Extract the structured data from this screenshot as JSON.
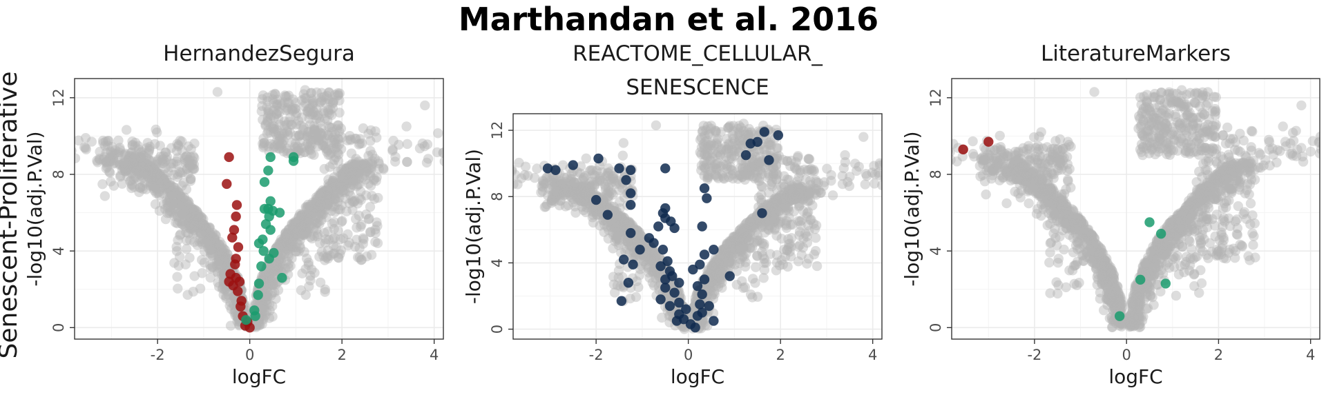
{
  "title": "Marthandan et al. 2016",
  "row_label": "Senescent-Proliferative",
  "colors": {
    "background_points": "#b3b3b3",
    "up": "#1a9b6d",
    "down": "#9b1111",
    "set": "#0f2a4f"
  },
  "chart_data": [
    {
      "type": "scatter",
      "title_lines": [
        "HernandezSegura"
      ],
      "xlabel": "logFC",
      "ylabel": "-log10(adj.P.Val)",
      "xlim": [
        -3.8,
        4.2
      ],
      "ylim": [
        -0.6,
        13.0
      ],
      "xticks": [
        -2,
        0,
        2,
        4
      ],
      "yticks": [
        0,
        4,
        8,
        12
      ],
      "grid": true,
      "series": [
        {
          "color": "#9b1111",
          "points": [
            [
              -0.45,
              8.9
            ],
            [
              -0.5,
              7.5
            ],
            [
              -0.28,
              6.4
            ],
            [
              -0.3,
              5.8
            ],
            [
              -0.34,
              5.1
            ],
            [
              -0.38,
              4.7
            ],
            [
              -0.25,
              4.2
            ],
            [
              -0.3,
              3.6
            ],
            [
              -0.32,
              3.3
            ],
            [
              -0.42,
              2.8
            ],
            [
              -0.3,
              2.6
            ],
            [
              -0.45,
              2.4
            ],
            [
              -0.36,
              2.2
            ],
            [
              -0.22,
              2.4
            ],
            [
              -0.26,
              1.9
            ],
            [
              -0.18,
              1.4
            ],
            [
              -0.15,
              0.6
            ],
            [
              -0.05,
              0.3
            ],
            [
              -0.1,
              0.1
            ],
            [
              0.0,
              0.0
            ],
            [
              -0.2,
              1.1
            ]
          ]
        },
        {
          "color": "#1a9b6d",
          "points": [
            [
              0.45,
              8.9
            ],
            [
              0.95,
              8.9
            ],
            [
              0.95,
              8.7
            ],
            [
              0.4,
              8.2
            ],
            [
              0.32,
              7.6
            ],
            [
              0.45,
              6.6
            ],
            [
              0.4,
              6.2
            ],
            [
              0.32,
              6.2
            ],
            [
              0.5,
              6.1
            ],
            [
              0.65,
              6.0
            ],
            [
              0.42,
              5.8
            ],
            [
              0.35,
              5.4
            ],
            [
              0.45,
              5.1
            ],
            [
              0.28,
              4.6
            ],
            [
              0.2,
              4.4
            ],
            [
              0.3,
              4.0
            ],
            [
              0.52,
              3.9
            ],
            [
              0.42,
              3.6
            ],
            [
              0.25,
              3.2
            ],
            [
              0.2,
              2.3
            ],
            [
              0.7,
              2.6
            ],
            [
              0.18,
              1.7
            ],
            [
              0.1,
              0.9
            ],
            [
              0.12,
              0.6
            ],
            [
              -0.08,
              0.4
            ]
          ]
        }
      ]
    },
    {
      "type": "scatter",
      "title_lines": [
        "REACTOME_CELLULAR_",
        "SENESCENCE"
      ],
      "xlabel": "logFC",
      "ylabel": "-log10(adj.P.Val)",
      "xlim": [
        -3.8,
        4.2
      ],
      "ylim": [
        -0.6,
        13.0
      ],
      "xticks": [
        -2,
        0,
        2,
        4
      ],
      "yticks": [
        0,
        4,
        8,
        12
      ],
      "grid": true,
      "series": [
        {
          "color": "#0f2a4f",
          "points": [
            [
              -3.05,
              9.7
            ],
            [
              -2.88,
              9.6
            ],
            [
              -2.5,
              9.9
            ],
            [
              -1.95,
              10.3
            ],
            [
              -1.5,
              9.7
            ],
            [
              -1.25,
              9.6
            ],
            [
              -1.35,
              9.0
            ],
            [
              -2.0,
              7.8
            ],
            [
              -1.75,
              6.9
            ],
            [
              -1.25,
              8.2
            ],
            [
              -1.25,
              7.5
            ],
            [
              -0.5,
              9.7
            ],
            [
              -0.5,
              7.3
            ],
            [
              -0.55,
              7.0
            ],
            [
              -0.5,
              6.7
            ],
            [
              -0.65,
              6.2
            ],
            [
              -0.38,
              6.5
            ],
            [
              -0.3,
              6.1
            ],
            [
              -1.25,
              5.8
            ],
            [
              -0.85,
              5.5
            ],
            [
              -0.75,
              5.2
            ],
            [
              -1.05,
              4.8
            ],
            [
              -1.4,
              4.2
            ],
            [
              -1.2,
              3.9
            ],
            [
              -0.55,
              4.8
            ],
            [
              -0.45,
              4.1
            ],
            [
              -0.6,
              3.8
            ],
            [
              -0.4,
              3.5
            ],
            [
              -0.35,
              3.2
            ],
            [
              -0.5,
              3.0
            ],
            [
              -0.2,
              2.8
            ],
            [
              -0.5,
              2.5
            ],
            [
              -0.3,
              2.2
            ],
            [
              -0.6,
              1.8
            ],
            [
              -0.2,
              1.6
            ],
            [
              -0.4,
              1.4
            ],
            [
              -1.45,
              1.7
            ],
            [
              -1.3,
              2.8
            ],
            [
              -0.05,
              1.2
            ],
            [
              -0.2,
              0.9
            ],
            [
              -0.1,
              0.6
            ],
            [
              0.05,
              0.3
            ],
            [
              0.15,
              0.1
            ],
            [
              -0.25,
              0.5
            ],
            [
              0.2,
              0.8
            ],
            [
              0.3,
              1.0
            ],
            [
              0.25,
              1.5
            ],
            [
              0.45,
              1.4
            ],
            [
              0.3,
              2.1
            ],
            [
              0.2,
              2.6
            ],
            [
              0.35,
              3.0
            ],
            [
              0.1,
              3.6
            ],
            [
              0.25,
              3.9
            ],
            [
              0.55,
              4.8
            ],
            [
              0.35,
              4.5
            ],
            [
              0.3,
              6.2
            ],
            [
              0.4,
              7.9
            ],
            [
              0.35,
              8.5
            ],
            [
              0.9,
              3.2
            ],
            [
              0.55,
              0.5
            ],
            [
              1.25,
              10.5
            ],
            [
              1.35,
              11.2
            ],
            [
              1.5,
              11.3
            ],
            [
              1.65,
              11.9
            ],
            [
              1.95,
              11.7
            ],
            [
              1.75,
              10.2
            ],
            [
              1.6,
              7.0
            ]
          ]
        }
      ]
    },
    {
      "type": "scatter",
      "title_lines": [
        "LiteratureMarkers"
      ],
      "xlabel": "logFC",
      "ylabel": "-log10(adj.P.Val)",
      "xlim": [
        -3.8,
        4.2
      ],
      "ylim": [
        -0.6,
        13.0
      ],
      "xticks": [
        -2,
        0,
        2,
        4
      ],
      "yticks": [
        0,
        4,
        8,
        12
      ],
      "grid": true,
      "series": [
        {
          "color": "#9b1111",
          "points": [
            [
              -3.55,
              9.3
            ],
            [
              -3.0,
              9.7
            ]
          ]
        },
        {
          "color": "#1a9b6d",
          "points": [
            [
              0.5,
              5.5
            ],
            [
              0.75,
              4.9
            ],
            [
              0.3,
              2.5
            ],
            [
              0.85,
              2.3
            ],
            [
              -0.15,
              0.6
            ]
          ]
        }
      ]
    }
  ]
}
